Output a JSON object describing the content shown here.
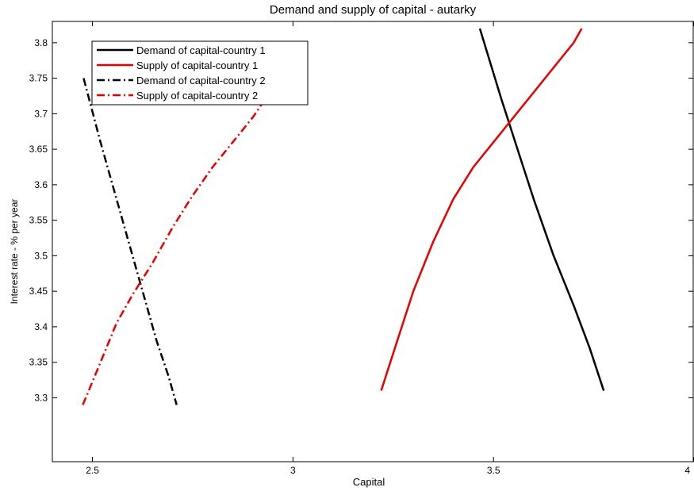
{
  "chart_data": {
    "type": "line",
    "title": "Demand and supply of capital - autarky",
    "xlabel": "Capital",
    "ylabel": "Interest rate - % per year",
    "xlim": [
      2.4,
      4.0
    ],
    "ylim": [
      3.21,
      3.83
    ],
    "x_ticks": [
      2.5,
      3,
      3.5,
      4
    ],
    "x_tick_labels": [
      "2.5",
      "3",
      "3.5",
      "4"
    ],
    "y_ticks": [
      3.3,
      3.35,
      3.4,
      3.45,
      3.5,
      3.55,
      3.6,
      3.65,
      3.7,
      3.75,
      3.8
    ],
    "y_tick_labels": [
      "3.3",
      "3.35",
      "3.4",
      "3.45",
      "3.5",
      "3.55",
      "3.6",
      "3.65",
      "3.7",
      "3.75",
      "3.8"
    ],
    "grid": false,
    "legend_position": "top-left",
    "series": [
      {
        "name": "Demand of capital-country 1",
        "color": "#000000",
        "style": "solid",
        "points": [
          [
            3.466,
            3.82
          ],
          [
            3.52,
            3.72
          ],
          [
            3.56,
            3.65
          ],
          [
            3.6,
            3.58
          ],
          [
            3.65,
            3.5
          ],
          [
            3.7,
            3.43
          ],
          [
            3.74,
            3.37
          ],
          [
            3.775,
            3.31
          ]
        ]
      },
      {
        "name": "Supply of capital-country 1",
        "color": "#e60000",
        "style": "solid",
        "points": [
          [
            3.22,
            3.31
          ],
          [
            3.26,
            3.38
          ],
          [
            3.3,
            3.45
          ],
          [
            3.35,
            3.52
          ],
          [
            3.4,
            3.58
          ],
          [
            3.45,
            3.625
          ],
          [
            3.5,
            3.66
          ],
          [
            3.55,
            3.695
          ],
          [
            3.6,
            3.73
          ],
          [
            3.65,
            3.765
          ],
          [
            3.7,
            3.8
          ],
          [
            3.72,
            3.82
          ]
        ]
      },
      {
        "name": "Demand of capital-country 2",
        "color": "#000000",
        "style": "dashdot",
        "points": [
          [
            2.478,
            3.75
          ],
          [
            2.52,
            3.66
          ],
          [
            2.56,
            3.58
          ],
          [
            2.6,
            3.5
          ],
          [
            2.63,
            3.44
          ],
          [
            2.66,
            3.38
          ],
          [
            2.69,
            3.33
          ],
          [
            2.71,
            3.29
          ]
        ]
      },
      {
        "name": "Supply of capital-country 2",
        "color": "#e60000",
        "style": "dashdot",
        "points": [
          [
            2.476,
            3.29
          ],
          [
            2.52,
            3.35
          ],
          [
            2.56,
            3.405
          ],
          [
            2.6,
            3.445
          ],
          [
            2.65,
            3.49
          ],
          [
            2.7,
            3.54
          ],
          [
            2.75,
            3.585
          ],
          [
            2.8,
            3.625
          ],
          [
            2.85,
            3.66
          ],
          [
            2.9,
            3.695
          ],
          [
            2.93,
            3.72
          ]
        ]
      }
    ]
  }
}
